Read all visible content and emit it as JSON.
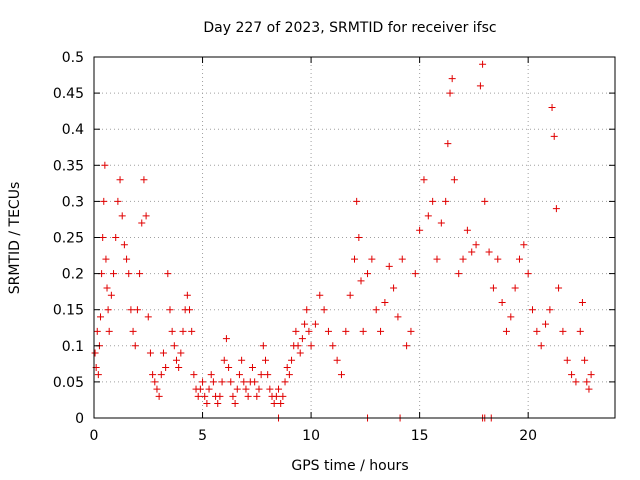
{
  "chart_data": {
    "type": "scatter",
    "title": "Day 227 of 2023, SRMTID for receiver ifsc",
    "xlabel": "GPS time / hours",
    "ylabel": "SRMTID / TECUs",
    "xlim": [
      0,
      24
    ],
    "ylim": [
      0,
      0.5
    ],
    "xticks": [
      0,
      5,
      10,
      15,
      20
    ],
    "yticks": [
      0,
      0.05,
      0.1,
      0.15,
      0.2,
      0.25,
      0.3,
      0.35,
      0.4,
      0.45,
      0.5
    ],
    "grid": true,
    "legend": "none",
    "marker": "+",
    "color": "#e00000",
    "series": [
      {
        "values": [
          [
            0.05,
            0.09
          ],
          [
            0.1,
            0.07
          ],
          [
            0.15,
            0.12
          ],
          [
            0.2,
            0.06
          ],
          [
            0.25,
            0.1
          ],
          [
            0.3,
            0.14
          ],
          [
            0.35,
            0.2
          ],
          [
            0.4,
            0.25
          ],
          [
            0.45,
            0.3
          ],
          [
            0.5,
            0.35
          ],
          [
            0.55,
            0.22
          ],
          [
            0.6,
            0.18
          ],
          [
            0.65,
            0.15
          ],
          [
            0.7,
            0.12
          ],
          [
            0.8,
            0.17
          ],
          [
            0.9,
            0.2
          ],
          [
            1.0,
            0.25
          ],
          [
            1.1,
            0.3
          ],
          [
            1.2,
            0.33
          ],
          [
            1.3,
            0.28
          ],
          [
            1.4,
            0.24
          ],
          [
            1.5,
            0.22
          ],
          [
            1.6,
            0.2
          ],
          [
            1.7,
            0.15
          ],
          [
            1.8,
            0.12
          ],
          [
            1.9,
            0.1
          ],
          [
            2.0,
            0.15
          ],
          [
            2.1,
            0.2
          ],
          [
            2.2,
            0.27
          ],
          [
            2.3,
            0.33
          ],
          [
            2.4,
            0.28
          ],
          [
            2.5,
            0.14
          ],
          [
            2.6,
            0.09
          ],
          [
            2.7,
            0.06
          ],
          [
            2.8,
            0.05
          ],
          [
            2.9,
            0.04
          ],
          [
            3.0,
            0.03
          ],
          [
            3.1,
            0.06
          ],
          [
            3.2,
            0.09
          ],
          [
            3.3,
            0.07
          ],
          [
            3.4,
            0.2
          ],
          [
            3.5,
            0.15
          ],
          [
            3.6,
            0.12
          ],
          [
            3.7,
            0.1
          ],
          [
            3.8,
            0.08
          ],
          [
            3.9,
            0.07
          ],
          [
            4.0,
            0.09
          ],
          [
            4.1,
            0.12
          ],
          [
            4.2,
            0.15
          ],
          [
            4.3,
            0.17
          ],
          [
            4.4,
            0.15
          ],
          [
            4.5,
            0.12
          ],
          [
            4.6,
            0.06
          ],
          [
            4.7,
            0.04
          ],
          [
            4.8,
            0.03
          ],
          [
            4.9,
            0.04
          ],
          [
            5.0,
            0.05
          ],
          [
            5.1,
            0.03
          ],
          [
            5.2,
            0.02
          ],
          [
            5.3,
            0.04
          ],
          [
            5.4,
            0.06
          ],
          [
            5.5,
            0.05
          ],
          [
            5.6,
            0.03
          ],
          [
            5.7,
            0.02
          ],
          [
            5.8,
            0.03
          ],
          [
            5.9,
            0.05
          ],
          [
            6.0,
            0.08
          ],
          [
            6.1,
            0.11
          ],
          [
            6.2,
            0.07
          ],
          [
            6.3,
            0.05
          ],
          [
            6.4,
            0.03
          ],
          [
            6.5,
            0.02
          ],
          [
            6.6,
            0.04
          ],
          [
            6.7,
            0.06
          ],
          [
            6.8,
            0.08
          ],
          [
            6.9,
            0.05
          ],
          [
            7.0,
            0.04
          ],
          [
            7.1,
            0.03
          ],
          [
            7.2,
            0.05
          ],
          [
            7.3,
            0.07
          ],
          [
            7.4,
            0.05
          ],
          [
            7.5,
            0.03
          ],
          [
            7.6,
            0.04
          ],
          [
            7.7,
            0.06
          ],
          [
            7.8,
            0.1
          ],
          [
            7.9,
            0.08
          ],
          [
            8.0,
            0.06
          ],
          [
            8.1,
            0.04
          ],
          [
            8.2,
            0.03
          ],
          [
            8.3,
            0.02
          ],
          [
            8.4,
            0.03
          ],
          [
            8.5,
            0.04
          ],
          [
            8.6,
            0.02
          ],
          [
            8.7,
            0.03
          ],
          [
            8.8,
            0.05
          ],
          [
            8.9,
            0.07
          ],
          [
            9.0,
            0.06
          ],
          [
            9.1,
            0.08
          ],
          [
            9.2,
            0.1
          ],
          [
            9.3,
            0.12
          ],
          [
            9.4,
            0.1
          ],
          [
            9.5,
            0.09
          ],
          [
            9.6,
            0.11
          ],
          [
            9.7,
            0.13
          ],
          [
            9.8,
            0.15
          ],
          [
            9.9,
            0.12
          ],
          [
            10.0,
            0.1
          ],
          [
            10.2,
            0.13
          ],
          [
            10.4,
            0.17
          ],
          [
            10.6,
            0.15
          ],
          [
            10.8,
            0.12
          ],
          [
            11.0,
            0.1
          ],
          [
            11.2,
            0.08
          ],
          [
            11.4,
            0.06
          ],
          [
            11.6,
            0.12
          ],
          [
            11.8,
            0.17
          ],
          [
            12.0,
            0.22
          ],
          [
            12.1,
            0.3
          ],
          [
            12.2,
            0.25
          ],
          [
            12.3,
            0.19
          ],
          [
            12.4,
            0.12
          ],
          [
            12.6,
            0.2
          ],
          [
            12.8,
            0.22
          ],
          [
            13.0,
            0.15
          ],
          [
            13.2,
            0.12
          ],
          [
            13.4,
            0.16
          ],
          [
            13.6,
            0.21
          ],
          [
            13.8,
            0.18
          ],
          [
            14.0,
            0.14
          ],
          [
            14.2,
            0.22
          ],
          [
            14.4,
            0.1
          ],
          [
            14.6,
            0.12
          ],
          [
            14.8,
            0.2
          ],
          [
            15.0,
            0.26
          ],
          [
            15.2,
            0.33
          ],
          [
            15.4,
            0.28
          ],
          [
            15.6,
            0.3
          ],
          [
            15.8,
            0.22
          ],
          [
            16.0,
            0.27
          ],
          [
            16.2,
            0.3
          ],
          [
            16.3,
            0.38
          ],
          [
            16.4,
            0.45
          ],
          [
            16.5,
            0.47
          ],
          [
            16.6,
            0.33
          ],
          [
            16.8,
            0.2
          ],
          [
            17.0,
            0.22
          ],
          [
            17.2,
            0.26
          ],
          [
            17.4,
            0.23
          ],
          [
            17.6,
            0.24
          ],
          [
            17.8,
            0.46
          ],
          [
            17.9,
            0.49
          ],
          [
            18.0,
            0.3
          ],
          [
            18.2,
            0.23
          ],
          [
            18.4,
            0.18
          ],
          [
            18.6,
            0.22
          ],
          [
            18.8,
            0.16
          ],
          [
            19.0,
            0.12
          ],
          [
            19.2,
            0.14
          ],
          [
            19.4,
            0.18
          ],
          [
            19.6,
            0.22
          ],
          [
            19.8,
            0.24
          ],
          [
            20.0,
            0.2
          ],
          [
            20.2,
            0.15
          ],
          [
            20.4,
            0.12
          ],
          [
            20.6,
            0.1
          ],
          [
            20.8,
            0.13
          ],
          [
            21.0,
            0.15
          ],
          [
            21.1,
            0.43
          ],
          [
            21.2,
            0.39
          ],
          [
            21.3,
            0.29
          ],
          [
            21.4,
            0.18
          ],
          [
            21.6,
            0.12
          ],
          [
            21.8,
            0.08
          ],
          [
            22.0,
            0.06
          ],
          [
            22.2,
            0.05
          ],
          [
            22.4,
            0.12
          ],
          [
            22.5,
            0.16
          ],
          [
            22.6,
            0.08
          ],
          [
            22.7,
            0.05
          ],
          [
            22.8,
            0.04
          ],
          [
            22.9,
            0.06
          ],
          [
            8.5,
            0.0
          ],
          [
            12.6,
            0.0
          ],
          [
            14.1,
            0.0
          ],
          [
            17.9,
            0.0
          ],
          [
            18.0,
            0.0
          ],
          [
            18.3,
            0.0
          ]
        ]
      }
    ]
  }
}
